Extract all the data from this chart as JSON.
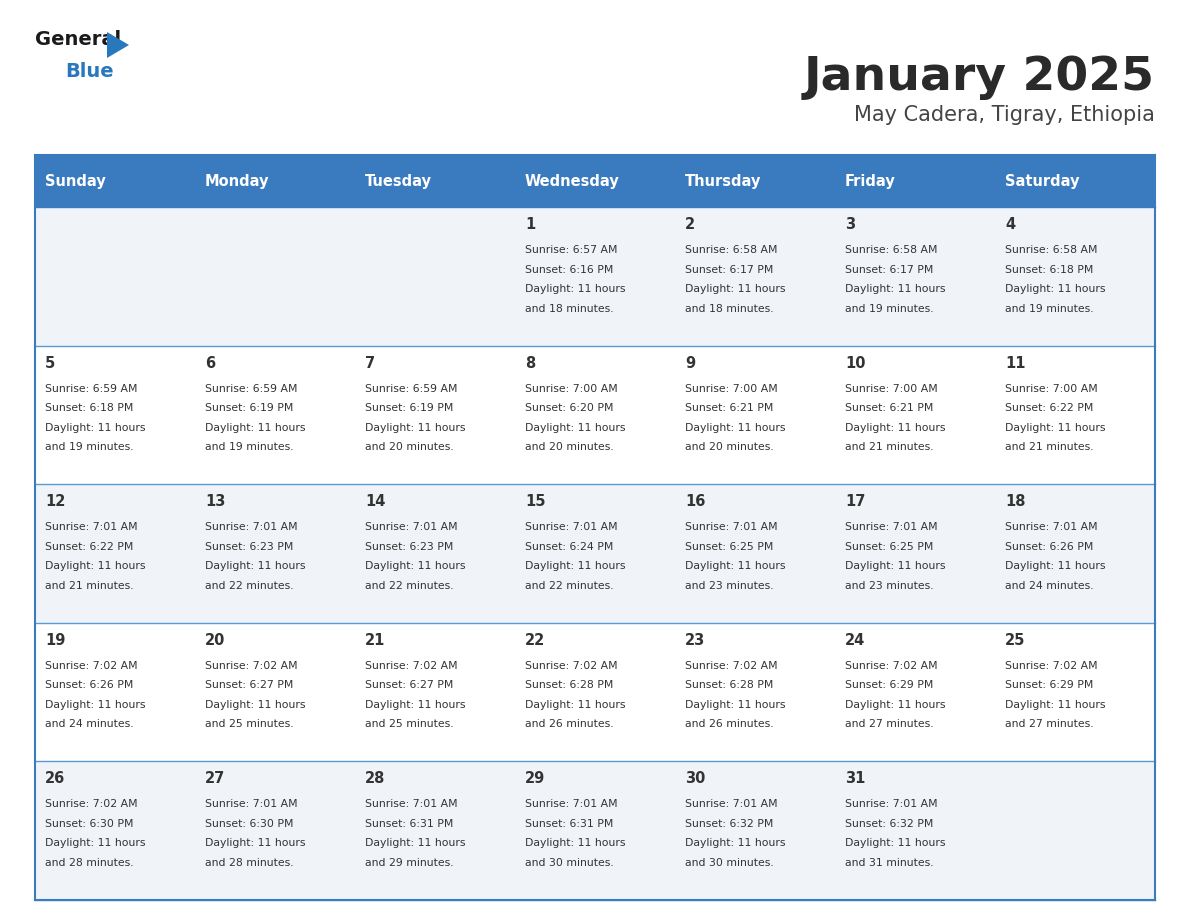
{
  "title": "January 2025",
  "subtitle": "May Cadera, Tigray, Ethiopia",
  "days_of_week": [
    "Sunday",
    "Monday",
    "Tuesday",
    "Wednesday",
    "Thursday",
    "Friday",
    "Saturday"
  ],
  "header_bg": "#3a7abf",
  "header_text_color": "#ffffff",
  "cell_bg_light": "#f0f4f8",
  "cell_bg_white": "#ffffff",
  "border_color": "#3a7abf",
  "divider_color": "#5a9ad4",
  "text_color": "#333333",
  "title_color": "#2a2a2a",
  "subtitle_color": "#444444",
  "logo_black": "#1a1a1a",
  "logo_blue": "#2878be",
  "calendar": [
    [
      null,
      null,
      null,
      {
        "day": 1,
        "sunrise": "6:57 AM",
        "sunset": "6:16 PM",
        "daylight_l1": "Daylight: 11 hours",
        "daylight_l2": "and 18 minutes."
      },
      {
        "day": 2,
        "sunrise": "6:58 AM",
        "sunset": "6:17 PM",
        "daylight_l1": "Daylight: 11 hours",
        "daylight_l2": "and 18 minutes."
      },
      {
        "day": 3,
        "sunrise": "6:58 AM",
        "sunset": "6:17 PM",
        "daylight_l1": "Daylight: 11 hours",
        "daylight_l2": "and 19 minutes."
      },
      {
        "day": 4,
        "sunrise": "6:58 AM",
        "sunset": "6:18 PM",
        "daylight_l1": "Daylight: 11 hours",
        "daylight_l2": "and 19 minutes."
      }
    ],
    [
      {
        "day": 5,
        "sunrise": "6:59 AM",
        "sunset": "6:18 PM",
        "daylight_l1": "Daylight: 11 hours",
        "daylight_l2": "and 19 minutes."
      },
      {
        "day": 6,
        "sunrise": "6:59 AM",
        "sunset": "6:19 PM",
        "daylight_l1": "Daylight: 11 hours",
        "daylight_l2": "and 19 minutes."
      },
      {
        "day": 7,
        "sunrise": "6:59 AM",
        "sunset": "6:19 PM",
        "daylight_l1": "Daylight: 11 hours",
        "daylight_l2": "and 20 minutes."
      },
      {
        "day": 8,
        "sunrise": "7:00 AM",
        "sunset": "6:20 PM",
        "daylight_l1": "Daylight: 11 hours",
        "daylight_l2": "and 20 minutes."
      },
      {
        "day": 9,
        "sunrise": "7:00 AM",
        "sunset": "6:21 PM",
        "daylight_l1": "Daylight: 11 hours",
        "daylight_l2": "and 20 minutes."
      },
      {
        "day": 10,
        "sunrise": "7:00 AM",
        "sunset": "6:21 PM",
        "daylight_l1": "Daylight: 11 hours",
        "daylight_l2": "and 21 minutes."
      },
      {
        "day": 11,
        "sunrise": "7:00 AM",
        "sunset": "6:22 PM",
        "daylight_l1": "Daylight: 11 hours",
        "daylight_l2": "and 21 minutes."
      }
    ],
    [
      {
        "day": 12,
        "sunrise": "7:01 AM",
        "sunset": "6:22 PM",
        "daylight_l1": "Daylight: 11 hours",
        "daylight_l2": "and 21 minutes."
      },
      {
        "day": 13,
        "sunrise": "7:01 AM",
        "sunset": "6:23 PM",
        "daylight_l1": "Daylight: 11 hours",
        "daylight_l2": "and 22 minutes."
      },
      {
        "day": 14,
        "sunrise": "7:01 AM",
        "sunset": "6:23 PM",
        "daylight_l1": "Daylight: 11 hours",
        "daylight_l2": "and 22 minutes."
      },
      {
        "day": 15,
        "sunrise": "7:01 AM",
        "sunset": "6:24 PM",
        "daylight_l1": "Daylight: 11 hours",
        "daylight_l2": "and 22 minutes."
      },
      {
        "day": 16,
        "sunrise": "7:01 AM",
        "sunset": "6:25 PM",
        "daylight_l1": "Daylight: 11 hours",
        "daylight_l2": "and 23 minutes."
      },
      {
        "day": 17,
        "sunrise": "7:01 AM",
        "sunset": "6:25 PM",
        "daylight_l1": "Daylight: 11 hours",
        "daylight_l2": "and 23 minutes."
      },
      {
        "day": 18,
        "sunrise": "7:01 AM",
        "sunset": "6:26 PM",
        "daylight_l1": "Daylight: 11 hours",
        "daylight_l2": "and 24 minutes."
      }
    ],
    [
      {
        "day": 19,
        "sunrise": "7:02 AM",
        "sunset": "6:26 PM",
        "daylight_l1": "Daylight: 11 hours",
        "daylight_l2": "and 24 minutes."
      },
      {
        "day": 20,
        "sunrise": "7:02 AM",
        "sunset": "6:27 PM",
        "daylight_l1": "Daylight: 11 hours",
        "daylight_l2": "and 25 minutes."
      },
      {
        "day": 21,
        "sunrise": "7:02 AM",
        "sunset": "6:27 PM",
        "daylight_l1": "Daylight: 11 hours",
        "daylight_l2": "and 25 minutes."
      },
      {
        "day": 22,
        "sunrise": "7:02 AM",
        "sunset": "6:28 PM",
        "daylight_l1": "Daylight: 11 hours",
        "daylight_l2": "and 26 minutes."
      },
      {
        "day": 23,
        "sunrise": "7:02 AM",
        "sunset": "6:28 PM",
        "daylight_l1": "Daylight: 11 hours",
        "daylight_l2": "and 26 minutes."
      },
      {
        "day": 24,
        "sunrise": "7:02 AM",
        "sunset": "6:29 PM",
        "daylight_l1": "Daylight: 11 hours",
        "daylight_l2": "and 27 minutes."
      },
      {
        "day": 25,
        "sunrise": "7:02 AM",
        "sunset": "6:29 PM",
        "daylight_l1": "Daylight: 11 hours",
        "daylight_l2": "and 27 minutes."
      }
    ],
    [
      {
        "day": 26,
        "sunrise": "7:02 AM",
        "sunset": "6:30 PM",
        "daylight_l1": "Daylight: 11 hours",
        "daylight_l2": "and 28 minutes."
      },
      {
        "day": 27,
        "sunrise": "7:01 AM",
        "sunset": "6:30 PM",
        "daylight_l1": "Daylight: 11 hours",
        "daylight_l2": "and 28 minutes."
      },
      {
        "day": 28,
        "sunrise": "7:01 AM",
        "sunset": "6:31 PM",
        "daylight_l1": "Daylight: 11 hours",
        "daylight_l2": "and 29 minutes."
      },
      {
        "day": 29,
        "sunrise": "7:01 AM",
        "sunset": "6:31 PM",
        "daylight_l1": "Daylight: 11 hours",
        "daylight_l2": "and 30 minutes."
      },
      {
        "day": 30,
        "sunrise": "7:01 AM",
        "sunset": "6:32 PM",
        "daylight_l1": "Daylight: 11 hours",
        "daylight_l2": "and 30 minutes."
      },
      {
        "day": 31,
        "sunrise": "7:01 AM",
        "sunset": "6:32 PM",
        "daylight_l1": "Daylight: 11 hours",
        "daylight_l2": "and 31 minutes."
      },
      null
    ]
  ]
}
